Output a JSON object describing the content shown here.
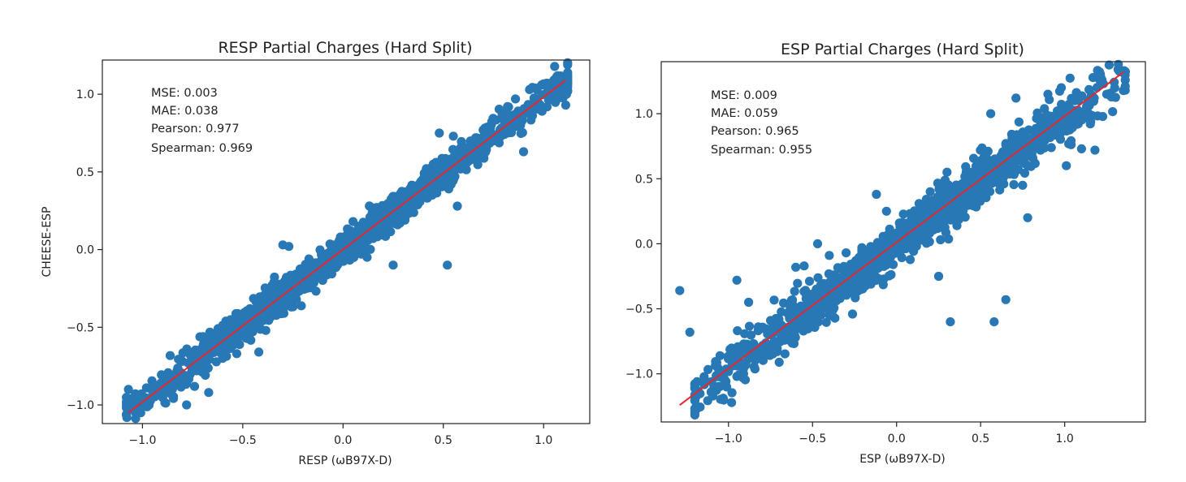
{
  "chart_data": [
    {
      "type": "scatter",
      "title": "RESP Partial Charges (Hard Split)",
      "xlabel": "RESP (ωB97X-D)",
      "ylabel": "CHEESE-ESP",
      "xlim": [
        -1.2,
        1.23
      ],
      "ylim": [
        -1.12,
        1.22
      ],
      "xticks": [
        -1.0,
        -0.5,
        0.0,
        0.5,
        1.0
      ],
      "xtick_labels": [
        "−1.0",
        "−0.5",
        "0.0",
        "0.5",
        "1.0"
      ],
      "yticks": [
        -1.0,
        -0.5,
        0.0,
        0.5,
        1.0
      ],
      "ytick_labels": [
        "−1.0",
        "−0.5",
        "0.0",
        "0.5",
        "1.0"
      ],
      "grid": false,
      "annotations": [
        "MSE: 0.003",
        "MAE: 0.038",
        "Pearson: 0.977",
        "Spearman: 0.969"
      ],
      "fit_line": {
        "x": [
          -1.07,
          1.11
        ],
        "y": [
          -1.05,
          1.09
        ],
        "color": "#e8262b"
      },
      "point_color": "#2878b5",
      "scatter_model": {
        "n": 1500,
        "x_min": -1.08,
        "x_max": 1.12,
        "slope": 0.98,
        "intercept": 0.0,
        "noise": 0.045,
        "seed": 7
      },
      "outliers": [
        [
          -1.07,
          -0.9
        ],
        [
          -1.06,
          -0.96
        ],
        [
          -1.02,
          -0.97
        ],
        [
          -0.98,
          -0.89
        ],
        [
          -0.95,
          -0.91
        ],
        [
          -0.78,
          -1.0
        ],
        [
          -0.67,
          -0.92
        ],
        [
          -0.6,
          -0.7
        ],
        [
          -0.58,
          -0.62
        ],
        [
          -0.53,
          -0.67
        ],
        [
          -0.42,
          -0.66
        ],
        [
          -0.21,
          -0.25
        ],
        [
          -0.3,
          0.03
        ],
        [
          -0.27,
          0.02
        ],
        [
          -0.17,
          -0.06
        ],
        [
          -0.28,
          -0.35
        ],
        [
          0.05,
          0.18
        ],
        [
          0.12,
          -0.05
        ],
        [
          0.25,
          -0.1
        ],
        [
          0.45,
          0.55
        ],
        [
          0.52,
          -0.1
        ],
        [
          0.57,
          0.28
        ],
        [
          0.55,
          0.73
        ],
        [
          0.48,
          0.75
        ],
        [
          0.7,
          0.6
        ],
        [
          0.82,
          0.92
        ],
        [
          0.84,
          0.83
        ],
        [
          0.9,
          0.63
        ],
        [
          0.93,
          1.03
        ],
        [
          0.95,
          0.9
        ],
        [
          1.11,
          0.93
        ],
        [
          0.86,
          0.97
        ],
        [
          0.75,
          0.7
        ]
      ]
    },
    {
      "type": "scatter",
      "title": "ESP Partial Charges (Hard Split)",
      "xlabel": "ESP (ωB97X-D)",
      "ylabel": "",
      "xlim": [
        -1.4,
        1.48
      ],
      "ylim": [
        -1.37,
        1.4
      ],
      "xticks": [
        -1.0,
        -0.5,
        0.0,
        0.5,
        1.0
      ],
      "xtick_labels": [
        "−1.0",
        "−0.5",
        "0.0",
        "0.5",
        "1.0"
      ],
      "yticks": [
        -1.0,
        -0.5,
        0.0,
        0.5,
        1.0
      ],
      "ytick_labels": [
        "−1.0",
        "−0.5",
        "0.0",
        "0.5",
        "1.0"
      ],
      "grid": false,
      "annotations": [
        "MSE: 0.009",
        "MAE: 0.059",
        "Pearson: 0.965",
        "Spearman: 0.955"
      ],
      "fit_line": {
        "x": [
          -1.29,
          1.35
        ],
        "y": [
          -1.24,
          1.32
        ],
        "color": "#e8262b"
      },
      "point_color": "#2878b5",
      "scatter_model": {
        "n": 1500,
        "x_min": -1.2,
        "x_max": 1.36,
        "slope": 0.97,
        "intercept": 0.0,
        "noise": 0.07,
        "seed": 13
      },
      "outliers": [
        [
          -1.29,
          -0.36
        ],
        [
          -1.23,
          -0.68
        ],
        [
          -1.1,
          -1.06
        ],
        [
          -1.05,
          -0.86
        ],
        [
          -0.95,
          -0.28
        ],
        [
          -0.88,
          -0.45
        ],
        [
          -0.95,
          -1.02
        ],
        [
          -0.6,
          -0.18
        ],
        [
          -0.55,
          -0.17
        ],
        [
          -0.47,
          0.0
        ],
        [
          -0.4,
          -0.09
        ],
        [
          -0.3,
          -0.07
        ],
        [
          -0.12,
          0.38
        ],
        [
          -0.06,
          0.25
        ],
        [
          0.2,
          0.4
        ],
        [
          0.25,
          -0.25
        ],
        [
          0.32,
          -0.6
        ],
        [
          0.42,
          0.3
        ],
        [
          0.58,
          -0.6
        ],
        [
          0.65,
          -0.43
        ],
        [
          0.78,
          0.2
        ],
        [
          0.75,
          0.45
        ],
        [
          0.68,
          0.67
        ],
        [
          0.56,
          1.0
        ],
        [
          0.71,
          1.12
        ],
        [
          0.82,
          0.8
        ],
        [
          0.9,
          1.15
        ],
        [
          0.98,
          1.2
        ],
        [
          1.06,
          1.1
        ],
        [
          1.1,
          0.73
        ],
        [
          1.18,
          0.72
        ],
        [
          1.01,
          0.6
        ],
        [
          1.34,
          1.32
        ],
        [
          1.25,
          1.15
        ],
        [
          0.3,
          0.55
        ],
        [
          1.28,
          1.13
        ]
      ]
    }
  ]
}
